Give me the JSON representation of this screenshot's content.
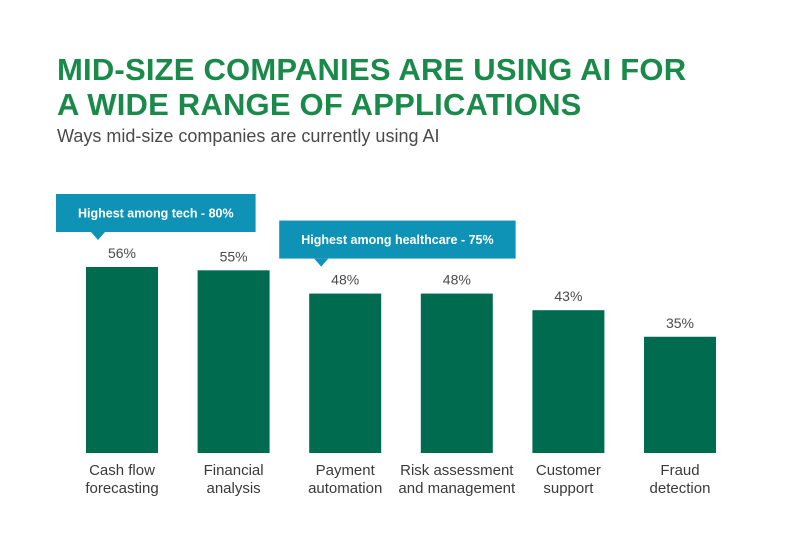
{
  "title_lines": [
    "MID-SIZE COMPANIES ARE USING AI FOR",
    "A WIDE RANGE OF APPLICATIONS"
  ],
  "subtitle": "Ways mid-size companies are currently using AI",
  "colors": {
    "title": "#1a8a4a",
    "bar": "#006b4f",
    "callout": "#0e93b7",
    "text": "#4a4a4a"
  },
  "chart_data": {
    "type": "bar",
    "title": "MID-SIZE COMPANIES ARE USING AI FOR A WIDE RANGE OF APPLICATIONS",
    "subtitle": "Ways mid-size companies are currently using AI",
    "categories": [
      [
        "Cash flow",
        "forecasting"
      ],
      [
        "Financial",
        "analysis"
      ],
      [
        "Payment",
        "automation"
      ],
      [
        "Risk assessment",
        "and management"
      ],
      [
        "Customer",
        "support"
      ],
      [
        "Fraud",
        "detection"
      ]
    ],
    "values": [
      56,
      55,
      48,
      48,
      43,
      35
    ],
    "value_labels": [
      "56%",
      "55%",
      "48%",
      "48%",
      "43%",
      "35%"
    ],
    "ylim": [
      0,
      56
    ],
    "grid": false,
    "legend": "none",
    "annotations": [
      {
        "text": "Highest among tech - 80%",
        "category_index": 0
      },
      {
        "text": "Highest among healthcare - 75%",
        "category_index": 2
      }
    ]
  }
}
